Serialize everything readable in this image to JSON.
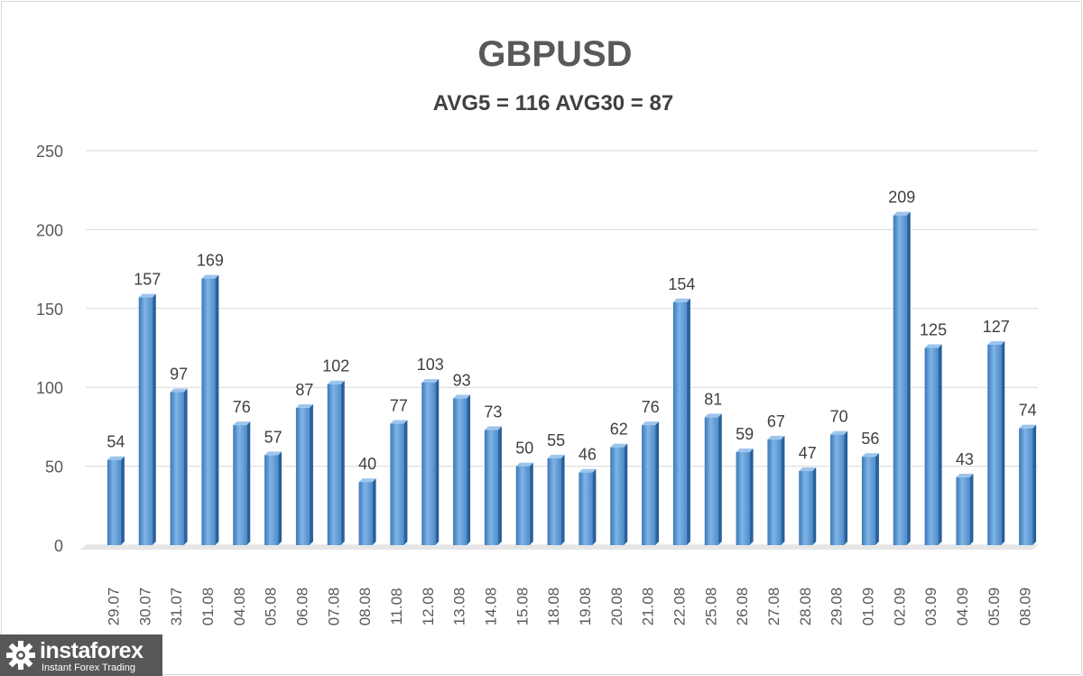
{
  "chart": {
    "title": "GBPUSD",
    "subtitle": "AVG5 = 116 AVG30 = 87"
  },
  "chart_data": {
    "type": "bar",
    "title": "GBPUSD",
    "subtitle": "AVG5 = 116 AVG30 = 87",
    "xlabel": "",
    "ylabel": "",
    "ylim": [
      0,
      250
    ],
    "yticks": [
      0,
      50,
      100,
      150,
      200,
      250
    ],
    "grid": true,
    "legend": "none",
    "bar_color": "#5b9bd5",
    "categories": [
      "29.07",
      "30.07",
      "31.07",
      "01.08",
      "04.08",
      "05.08",
      "06.08",
      "07.08",
      "08.08",
      "11.08",
      "12.08",
      "13.08",
      "14.08",
      "15.08",
      "18.08",
      "19.08",
      "20.08",
      "21.08",
      "22.08",
      "25.08",
      "26.08",
      "27.08",
      "28.08",
      "29.08",
      "01.09",
      "02.09",
      "03.09",
      "04.09",
      "05.09",
      "08.09"
    ],
    "values": [
      54,
      157,
      97,
      169,
      76,
      57,
      87,
      102,
      40,
      77,
      103,
      93,
      73,
      50,
      55,
      46,
      62,
      76,
      154,
      81,
      59,
      67,
      47,
      70,
      56,
      209,
      125,
      43,
      127,
      74
    ]
  },
  "logo": {
    "name": "instaforex",
    "tagline": "Instant Forex Trading"
  }
}
